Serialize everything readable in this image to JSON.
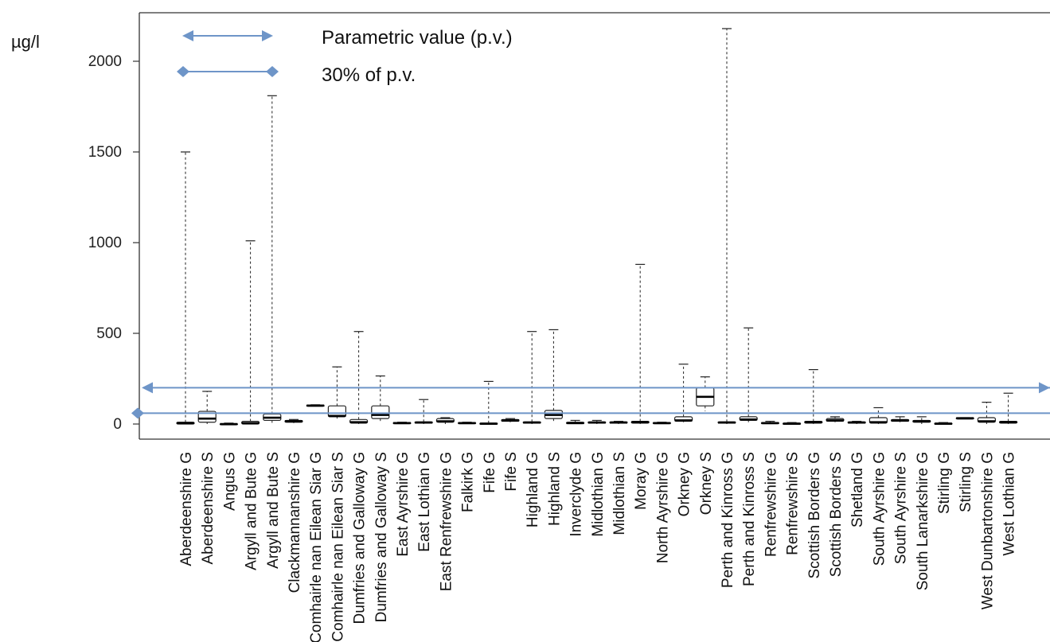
{
  "chart_data": {
    "type": "boxplot",
    "unit_label": "µg/l",
    "ylim": [
      0,
      2200
    ],
    "yticks": [
      0,
      500,
      1000,
      1500,
      2000
    ],
    "grid": false,
    "legend_position": "top-left",
    "legend": [
      {
        "label": "Parametric value (p.v.)",
        "marker": "arrow",
        "value": 200
      },
      {
        "label": "30% of p.v.",
        "marker": "diamond",
        "value": 60
      }
    ],
    "colors": {
      "reference_line": "#6e95c8",
      "box": "#222222",
      "axis": "#333333"
    },
    "categories": [
      "Aberdeenshire G",
      "Aberdeenshire S",
      "Angus G",
      "Argyll and Bute G",
      "Argyll and Bute S",
      "Clackmannanshire G",
      "Comhairle nan Eilean Siar G",
      "Comhairle nan Eilean Siar S",
      "Dumfries and Galloway G",
      "Dumfries and Galloway S",
      "East Ayrshire G",
      "East Lothian G",
      "East Renfrewshire G",
      "Falkirk G",
      "Fife G",
      "Fife S",
      "Highland G",
      "Highland S",
      "Inverclyde G",
      "Midlothian G",
      "Midlothian S",
      "Moray G",
      "North Ayrshire G",
      "Orkney G",
      "Orkney S",
      "Perth and Kinross G",
      "Perth and Kinross S",
      "Renfrewshire G",
      "Renfrewshire S",
      "Scottish Borders G",
      "Scottish Borders S",
      "Shetland G",
      "South Ayrshire G",
      "South Ayrshire S",
      "South Lanarkshire G",
      "Stirling G",
      "Stirling S",
      "West Dunbartonshire G",
      "West Lothian G"
    ],
    "series": [
      {
        "min": 0,
        "q1": 0,
        "median": 5,
        "q3": 10,
        "max": 1500
      },
      {
        "min": 0,
        "q1": 10,
        "median": 30,
        "q3": 70,
        "max": 180
      },
      {
        "min": 0,
        "q1": 0,
        "median": 0,
        "q3": 2,
        "max": 5
      },
      {
        "min": 0,
        "q1": 0,
        "median": 5,
        "q3": 15,
        "max": 1010
      },
      {
        "min": 0,
        "q1": 20,
        "median": 35,
        "q3": 55,
        "max": 1810
      },
      {
        "min": 5,
        "q1": 10,
        "median": 15,
        "q3": 20,
        "max": 25
      },
      {
        "min": 100,
        "q1": 100,
        "median": 102,
        "q3": 104,
        "max": 106
      },
      {
        "min": 30,
        "q1": 40,
        "median": 45,
        "q3": 100,
        "max": 315
      },
      {
        "min": 0,
        "q1": 5,
        "median": 10,
        "q3": 25,
        "max": 510
      },
      {
        "min": 10,
        "q1": 30,
        "median": 50,
        "q3": 100,
        "max": 265
      },
      {
        "min": 0,
        "q1": 2,
        "median": 5,
        "q3": 8,
        "max": 10
      },
      {
        "min": 0,
        "q1": 5,
        "median": 8,
        "q3": 12,
        "max": 135
      },
      {
        "min": 0,
        "q1": 10,
        "median": 15,
        "q3": 30,
        "max": 35
      },
      {
        "min": 0,
        "q1": 3,
        "median": 5,
        "q3": 8,
        "max": 10
      },
      {
        "min": 0,
        "q1": 0,
        "median": 2,
        "q3": 5,
        "max": 235
      },
      {
        "min": 10,
        "q1": 15,
        "median": 20,
        "q3": 25,
        "max": 30
      },
      {
        "min": 0,
        "q1": 5,
        "median": 8,
        "q3": 12,
        "max": 510
      },
      {
        "min": 10,
        "q1": 30,
        "median": 50,
        "q3": 75,
        "max": 520
      },
      {
        "min": 0,
        "q1": 2,
        "median": 5,
        "q3": 10,
        "max": 20
      },
      {
        "min": 0,
        "q1": 5,
        "median": 8,
        "q3": 12,
        "max": 20
      },
      {
        "min": 0,
        "q1": 5,
        "median": 8,
        "q3": 12,
        "max": 15
      },
      {
        "min": 0,
        "q1": 5,
        "median": 10,
        "q3": 15,
        "max": 880
      },
      {
        "min": 0,
        "q1": 2,
        "median": 5,
        "q3": 8,
        "max": 10
      },
      {
        "min": 10,
        "q1": 15,
        "median": 20,
        "q3": 40,
        "max": 330
      },
      {
        "min": 70,
        "q1": 100,
        "median": 150,
        "q3": 200,
        "max": 260
      },
      {
        "min": 0,
        "q1": 5,
        "median": 8,
        "q3": 12,
        "max": 2180
      },
      {
        "min": 10,
        "q1": 20,
        "median": 25,
        "q3": 40,
        "max": 530
      },
      {
        "min": 0,
        "q1": 2,
        "median": 5,
        "q3": 8,
        "max": 15
      },
      {
        "min": 0,
        "q1": 0,
        "median": 2,
        "q3": 5,
        "max": 8
      },
      {
        "min": 0,
        "q1": 5,
        "median": 10,
        "q3": 15,
        "max": 300
      },
      {
        "min": 10,
        "q1": 15,
        "median": 20,
        "q3": 30,
        "max": 40
      },
      {
        "min": 0,
        "q1": 5,
        "median": 8,
        "q3": 12,
        "max": 15
      },
      {
        "min": 0,
        "q1": 5,
        "median": 10,
        "q3": 35,
        "max": 90
      },
      {
        "min": 10,
        "q1": 15,
        "median": 20,
        "q3": 25,
        "max": 40
      },
      {
        "min": 0,
        "q1": 10,
        "median": 15,
        "q3": 20,
        "max": 40
      },
      {
        "min": 0,
        "q1": 0,
        "median": 2,
        "q3": 5,
        "max": 8
      },
      {
        "min": 30,
        "q1": 30,
        "median": 32,
        "q3": 34,
        "max": 35
      },
      {
        "min": 0,
        "q1": 10,
        "median": 15,
        "q3": 35,
        "max": 120
      },
      {
        "min": 0,
        "q1": 5,
        "median": 10,
        "q3": 15,
        "max": 170
      }
    ]
  }
}
